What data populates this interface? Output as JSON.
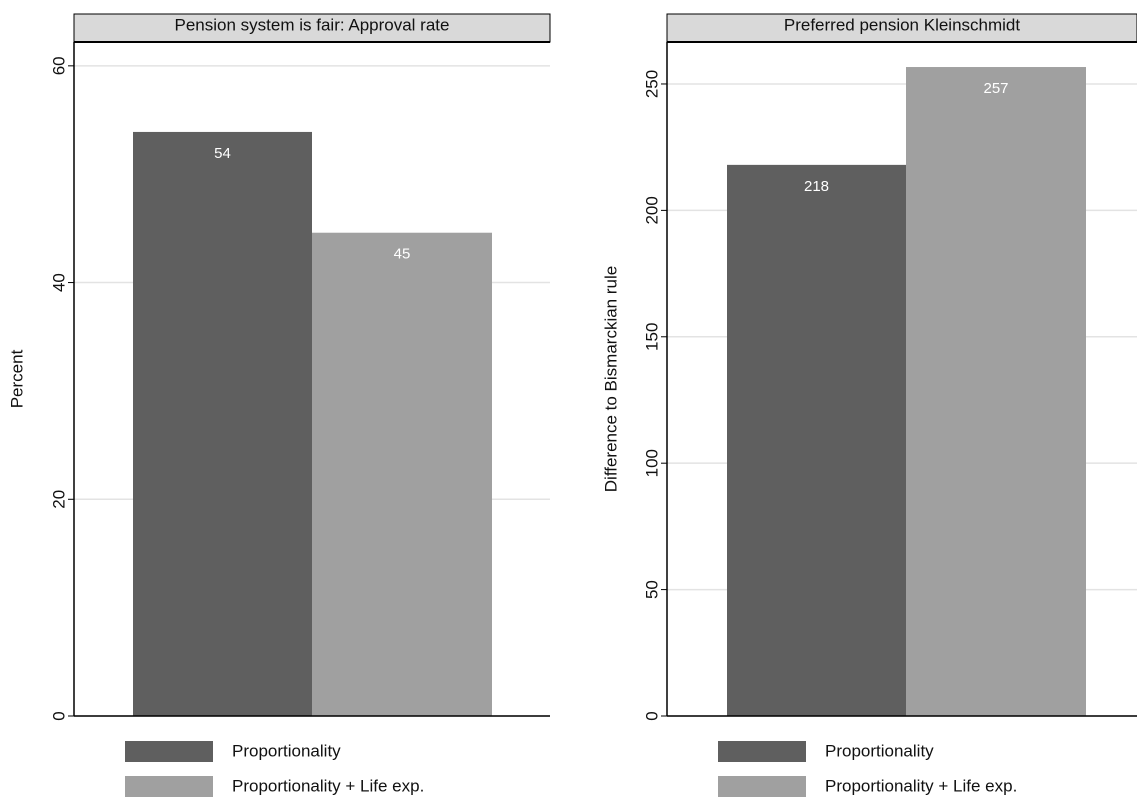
{
  "chart_data": [
    {
      "type": "bar",
      "title": "Pension system is fair: Approval rate",
      "ylabel": "Percent",
      "ylim": [
        0,
        62.2
      ],
      "yticks": [
        0,
        20,
        40,
        60
      ],
      "grid": true,
      "legend": "bottom",
      "series": [
        {
          "name": "Proportionality",
          "color": "#5f5f5f",
          "values": [
            53.9
          ],
          "value_labels": [
            "54"
          ]
        },
        {
          "name": "Proportionality + Life exp.",
          "color": "#a0a0a0",
          "values": [
            44.6
          ],
          "value_labels": [
            "45"
          ]
        }
      ]
    },
    {
      "type": "bar",
      "title": "Preferred pension Kleinschmidt",
      "ylabel": "Difference to Bismarckian rule",
      "ylim": [
        0,
        266.6
      ],
      "yticks": [
        0,
        50,
        100,
        150,
        200,
        250
      ],
      "grid": true,
      "legend": "bottom",
      "series": [
        {
          "name": "Proportionality",
          "color": "#5f5f5f",
          "values": [
            218
          ],
          "value_labels": [
            "218"
          ]
        },
        {
          "name": "Proportionality + Life exp.",
          "color": "#a0a0a0",
          "values": [
            256.7
          ],
          "value_labels": [
            "257"
          ]
        }
      ]
    }
  ]
}
